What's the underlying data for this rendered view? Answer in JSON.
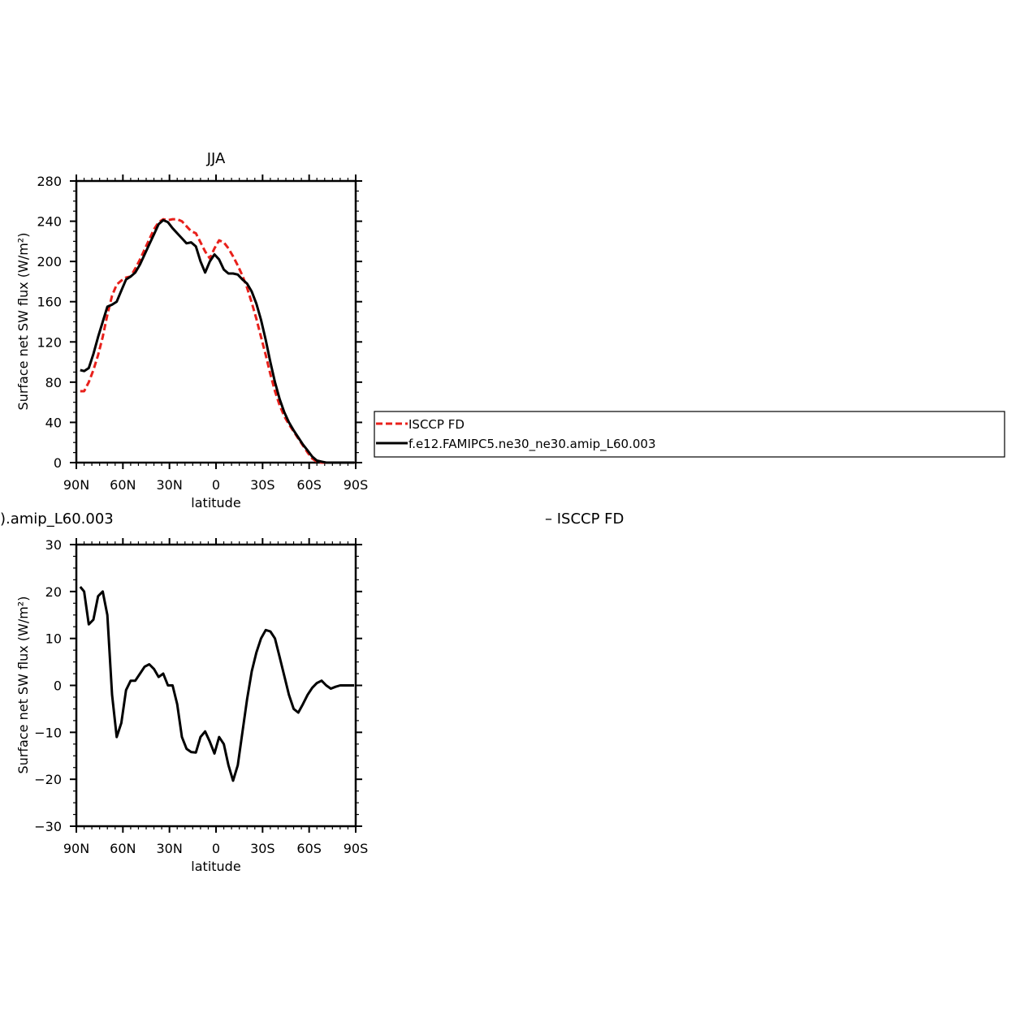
{
  "chart_data": [
    {
      "type": "line",
      "title": "JJA",
      "xlabel": "latitude",
      "ylabel": "Surface net SW flux (W/m²)",
      "xlim": [
        90,
        -90
      ],
      "ylim": [
        0,
        280
      ],
      "xticks": [
        90,
        60,
        30,
        0,
        -30,
        -60,
        -90
      ],
      "xtick_labels": [
        "90N",
        "60N",
        "30N",
        "0",
        "30S",
        "60S",
        "90S"
      ],
      "yticks": [
        0,
        40,
        80,
        120,
        160,
        200,
        240,
        280
      ],
      "ytick_labels": [
        "0",
        "40",
        "80",
        "120",
        "160",
        "200",
        "240",
        "280"
      ],
      "legend": {
        "placement": "right",
        "entries": [
          "ISCCP FD",
          "f.e12.FAMIPC5.ne30_ne30.amip_L60.003"
        ]
      },
      "series": [
        {
          "name": "ISCCP FD",
          "color": "#e8201b",
          "dash": "dashed",
          "x": [
            87.5,
            85,
            82,
            79,
            76,
            73,
            70,
            67,
            64,
            61,
            58,
            55,
            52,
            49,
            46,
            43,
            40,
            37,
            34,
            31,
            28,
            25,
            22,
            19,
            16,
            13,
            10,
            7,
            4,
            1,
            -2,
            -5,
            -8,
            -11,
            -14,
            -17,
            -20,
            -23,
            -26,
            -29,
            -32,
            -35,
            -38,
            -41,
            -44,
            -47,
            -50,
            -53,
            -56,
            -59,
            -62,
            -65,
            -68,
            -71,
            -74,
            -77,
            -80,
            -83,
            -86,
            -89
          ],
          "y": [
            71,
            71,
            80,
            92,
            107,
            125,
            147,
            166,
            177,
            181,
            184,
            185,
            193,
            202,
            212,
            222,
            232,
            239,
            242,
            241,
            242,
            242,
            240,
            235,
            230,
            228,
            219,
            210,
            203,
            213,
            221,
            219,
            213,
            205,
            196,
            186,
            174,
            159,
            143,
            125,
            107,
            88,
            71,
            57,
            46,
            38,
            31,
            24,
            17,
            10,
            4,
            1,
            0,
            0,
            0,
            0,
            0,
            0,
            0,
            0
          ]
        },
        {
          "name": "f.e12.FAMIPC5.ne30_ne30.amip_L60.003",
          "color": "#000000",
          "dash": "solid",
          "x": [
            87.5,
            85,
            82,
            79,
            76,
            73,
            70,
            67,
            64,
            61,
            58,
            55,
            52,
            49,
            46,
            43,
            40,
            37,
            34,
            31,
            28,
            25,
            22,
            19,
            16,
            13,
            10,
            7,
            4,
            1,
            -2,
            -5,
            -8,
            -11,
            -14,
            -17,
            -20,
            -23,
            -26,
            -29,
            -32,
            -35,
            -38,
            -41,
            -44,
            -47,
            -50,
            -53,
            -56,
            -59,
            -62,
            -65,
            -68,
            -71,
            -74,
            -77,
            -80,
            -83,
            -86,
            -89
          ],
          "y": [
            92,
            91,
            94,
            108,
            125,
            140,
            155,
            157,
            160,
            171,
            182,
            185,
            189,
            197,
            207,
            217,
            227,
            237,
            241,
            239,
            233,
            228,
            223,
            218,
            219,
            215,
            200,
            189,
            200,
            207,
            202,
            192,
            188,
            188,
            187,
            182,
            178,
            170,
            158,
            142,
            122,
            100,
            80,
            63,
            50,
            40,
            32,
            25,
            18,
            12,
            6,
            2,
            1,
            0,
            0,
            0,
            0,
            0,
            0,
            0
          ]
        }
      ]
    },
    {
      "type": "line",
      "title": ").amip_L60.003",
      "title_right": "– ISCCP FD",
      "xlabel": "latitude",
      "ylabel": "Surface net SW flux (W/m²)",
      "xlim": [
        90,
        -90
      ],
      "ylim": [
        -30,
        30
      ],
      "xticks": [
        90,
        60,
        30,
        0,
        -30,
        -60,
        -90
      ],
      "xtick_labels": [
        "90N",
        "60N",
        "30N",
        "0",
        "30S",
        "60S",
        "90S"
      ],
      "yticks": [
        -30,
        -20,
        -10,
        0,
        10,
        20,
        30
      ],
      "ytick_labels": [
        "−30",
        "−20",
        "−10",
        "0",
        "10",
        "20",
        "30"
      ],
      "series": [
        {
          "color": "#000000",
          "dash": "solid",
          "x": [
            87.5,
            85,
            82,
            79,
            76,
            73,
            70,
            67,
            64,
            61,
            58,
            55,
            52,
            49,
            46,
            43,
            40,
            37,
            34,
            31,
            28,
            25,
            22,
            19,
            16,
            13,
            10,
            7,
            4,
            1,
            -2,
            -5,
            -8,
            -11,
            -14,
            -17,
            -20,
            -23,
            -26,
            -29,
            -32,
            -35,
            -38,
            -41,
            -44,
            -47,
            -50,
            -53,
            -56,
            -59,
            -62,
            -65,
            -68,
            -71,
            -74,
            -77,
            -80,
            -83,
            -86,
            -89
          ],
          "y": [
            21,
            20,
            13,
            14,
            19,
            20,
            15,
            -2,
            -11,
            -8,
            -1,
            1,
            1,
            2.5,
            4,
            4.5,
            3.5,
            1.8,
            2.5,
            0,
            0,
            -4,
            -11,
            -13.5,
            -14.2,
            -14.3,
            -11,
            -9.8,
            -12,
            -14.5,
            -11,
            -12.5,
            -17,
            -20.3,
            -17,
            -10,
            -3,
            3,
            7,
            10,
            11.8,
            11.5,
            10,
            6,
            2,
            -2,
            -5,
            -5.8,
            -4,
            -2,
            -0.5,
            0.5,
            1,
            0,
            -0.7,
            -0.3,
            0,
            0,
            0,
            0
          ]
        }
      ]
    }
  ]
}
